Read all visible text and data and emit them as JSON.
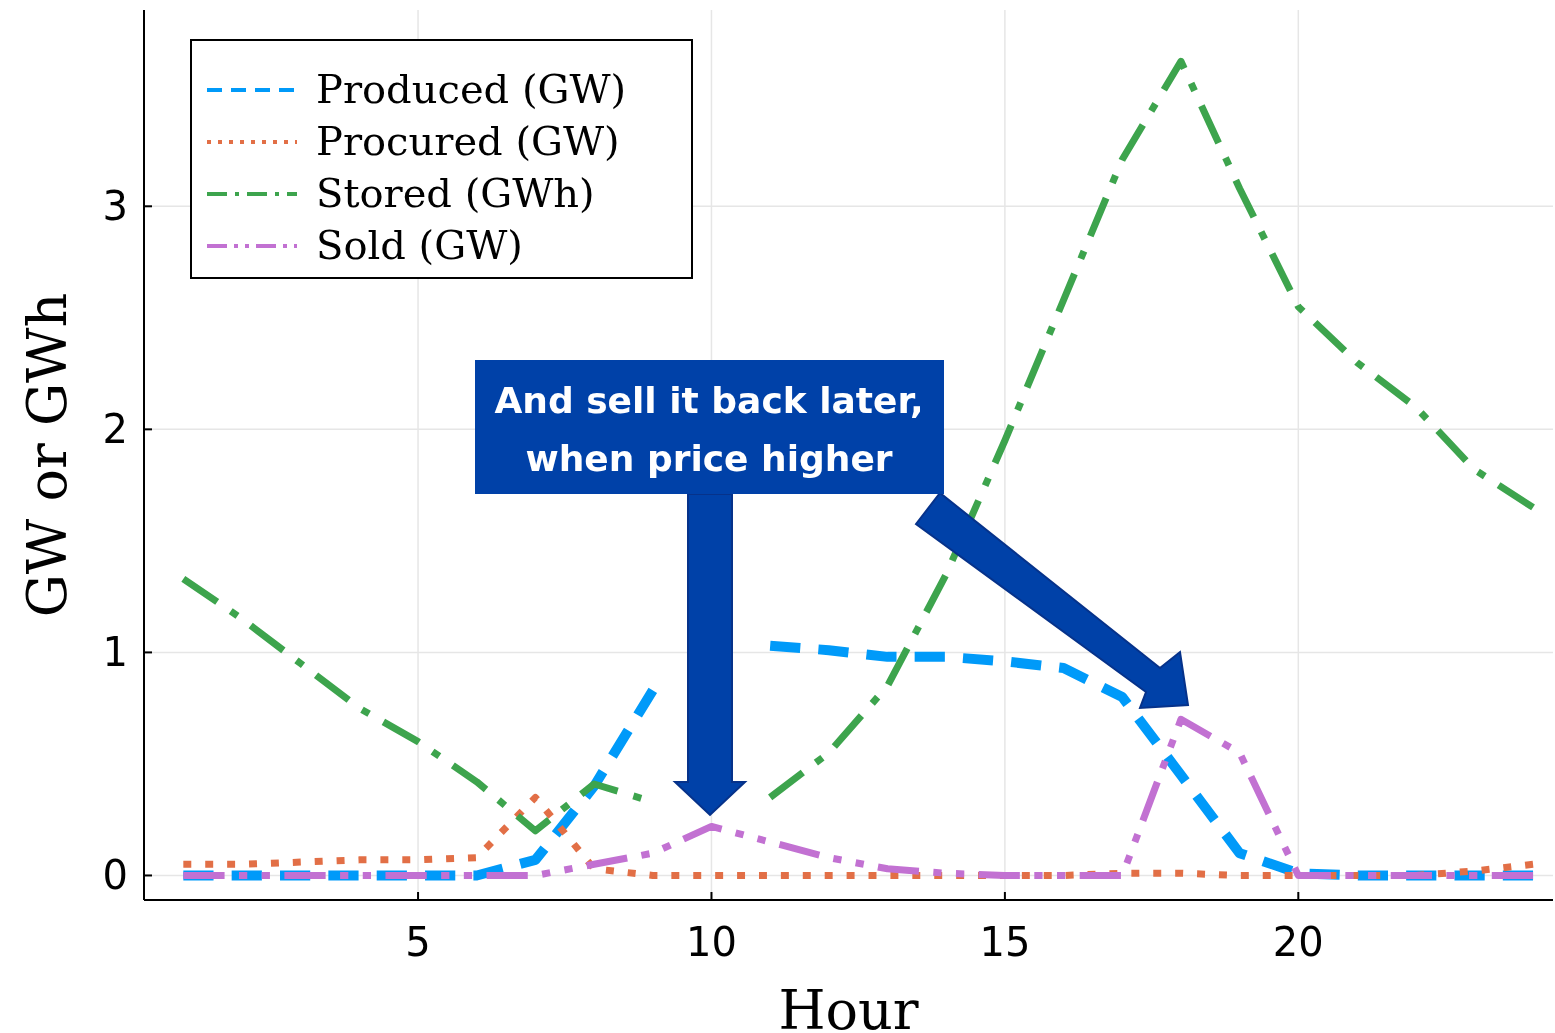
{
  "chart_data": {
    "type": "line",
    "xlabel": "Hour",
    "ylabel": "GW or GWh",
    "x": [
      1,
      2,
      3,
      4,
      5,
      6,
      7,
      8,
      9,
      10,
      11,
      12,
      13,
      14,
      15,
      16,
      17,
      18,
      19,
      20,
      21,
      22,
      23,
      24
    ],
    "xlim": [
      0.33,
      24.34
    ],
    "ylim": [
      -0.11,
      3.88
    ],
    "xticks": [
      5,
      10,
      15,
      20
    ],
    "yticks": [
      0,
      1,
      2,
      3
    ],
    "grid": true,
    "legend": "top left",
    "annotations": [
      "And sell it back later, when price higher"
    ],
    "series": [
      {
        "name": "Produced (GW)",
        "color": "#009af9",
        "line_style": "dashed",
        "values": [
          0,
          0,
          0,
          0,
          0,
          0,
          0.07,
          0.4,
          0.83,
          null,
          1.03,
          1.01,
          0.98,
          0.98,
          0.96,
          0.93,
          0.8,
          0.45,
          0.1,
          0.01,
          0,
          0,
          0,
          0
        ]
      },
      {
        "name": "Procured (GW)",
        "color": "#e26f46",
        "line_style": "dotted",
        "values": [
          0.05,
          0.05,
          0.06,
          0.07,
          0.07,
          0.08,
          0.35,
          0.03,
          0,
          0,
          0,
          0,
          0,
          0,
          0,
          0,
          0.01,
          0.01,
          0,
          0,
          0,
          0,
          0.02,
          0.05
        ]
      },
      {
        "name": "Stored (GWh)",
        "color": "#3da44d",
        "line_style": "dashdot",
        "values": [
          1.33,
          1.15,
          0.95,
          0.75,
          0.6,
          0.42,
          0.2,
          0.41,
          0.33,
          null,
          0.35,
          0.55,
          0.85,
          1.35,
          1.95,
          2.58,
          3.21,
          3.65,
          3.08,
          2.55,
          2.3,
          2.1,
          1.82,
          1.65
        ]
      },
      {
        "name": "Sold (GW)",
        "color": "#c271d2",
        "line_style": "dashdotdot",
        "values": [
          0,
          0,
          0,
          0,
          0,
          0,
          0,
          0.05,
          0.1,
          0.22,
          0.15,
          0.08,
          0.03,
          0.01,
          0,
          0,
          0,
          0.7,
          0.55,
          0,
          0,
          0,
          0,
          0
        ]
      }
    ]
  }
}
